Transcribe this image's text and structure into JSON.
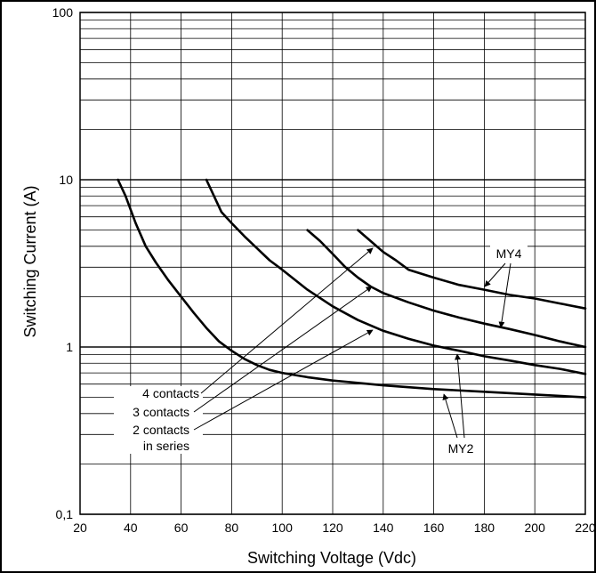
{
  "chart_data": {
    "type": "line",
    "xlabel": "Switching Voltage (Vdc)",
    "ylabel": "Switching Current (A)",
    "xlim": [
      20,
      220
    ],
    "ylim": [
      0.1,
      100
    ],
    "y_scale": "log",
    "grid": true,
    "x_ticks": [
      "20",
      "40",
      "60",
      "80",
      "100",
      "120",
      "140",
      "160",
      "180",
      "200",
      "220"
    ],
    "y_ticks": [
      {
        "value": 100,
        "label": "100"
      },
      {
        "value": 10,
        "label": "10"
      },
      {
        "value": 1,
        "label": "1"
      },
      {
        "value": 0.1,
        "label": "0,1"
      }
    ],
    "series": [
      {
        "x": [
          35,
          38,
          42,
          46,
          50,
          55,
          60,
          65,
          70,
          75,
          80,
          85,
          90,
          95,
          100,
          110,
          120,
          140,
          160,
          180,
          200,
          220
        ],
        "y": [
          10,
          8,
          5.5,
          4,
          3.2,
          2.5,
          2,
          1.6,
          1.3,
          1.08,
          0.95,
          0.85,
          0.78,
          0.73,
          0.7,
          0.66,
          0.63,
          0.59,
          0.56,
          0.54,
          0.52,
          0.5
        ]
      },
      {
        "x": [
          70,
          73,
          76,
          80,
          85,
          90,
          95,
          100,
          110,
          120,
          130,
          140,
          150,
          160,
          170,
          180,
          190,
          200,
          210,
          220
        ],
        "y": [
          10,
          8,
          6.4,
          5.5,
          4.6,
          3.9,
          3.3,
          2.9,
          2.2,
          1.75,
          1.45,
          1.25,
          1.12,
          1.02,
          0.95,
          0.88,
          0.83,
          0.78,
          0.74,
          0.69
        ]
      },
      {
        "x": [
          110,
          115,
          120,
          125,
          130,
          135,
          140,
          150,
          160,
          170,
          180,
          190,
          200,
          210,
          220
        ],
        "y": [
          5,
          4.3,
          3.6,
          3,
          2.6,
          2.3,
          2.1,
          1.85,
          1.65,
          1.5,
          1.38,
          1.28,
          1.18,
          1.08,
          1
        ]
      },
      {
        "x": [
          130,
          135,
          140,
          145,
          150,
          160,
          170,
          180,
          190,
          200,
          210,
          220
        ],
        "y": [
          5,
          4.3,
          3.7,
          3.3,
          2.9,
          2.6,
          2.35,
          2.2,
          2.05,
          1.95,
          1.82,
          1.7
        ]
      }
    ],
    "annotations": {
      "contacts": [
        "4 contacts",
        "3 contacts",
        "2 contacts",
        "in series"
      ],
      "my4": "MY4",
      "my2": "MY2"
    }
  }
}
